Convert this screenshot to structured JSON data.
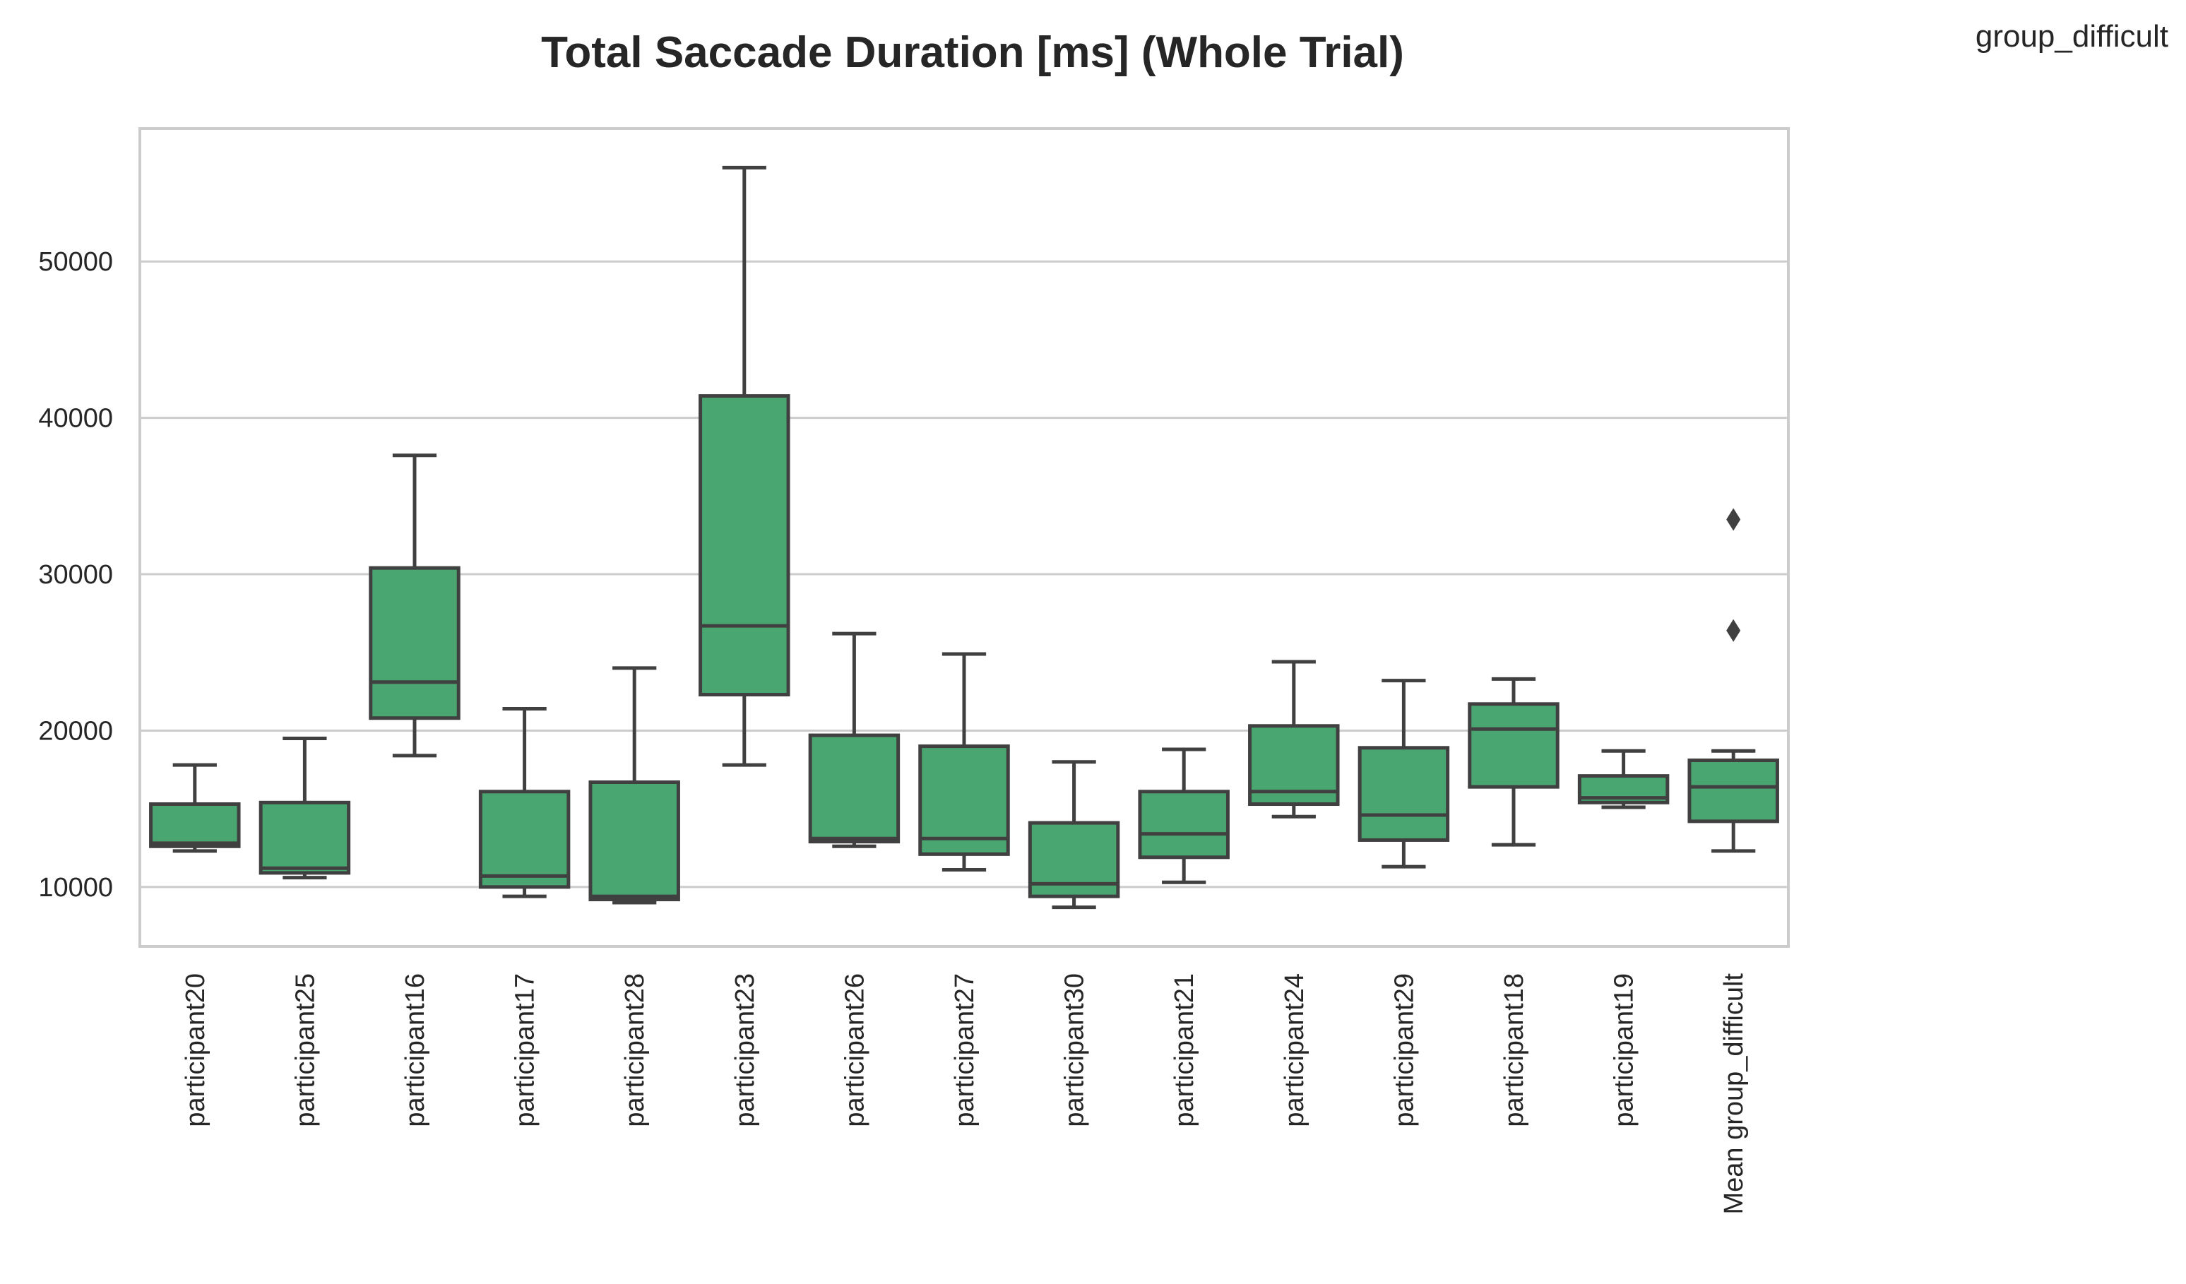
{
  "chart_data": {
    "type": "box",
    "title": "Total Saccade Duration [ms] (Whole Trial)",
    "corner_label": "group_difficult",
    "xlabel": "",
    "ylabel": "",
    "ylim": [
      6200,
      58500
    ],
    "yticks": [
      10000,
      20000,
      30000,
      40000,
      50000
    ],
    "grid": "horizontal",
    "box_color": "#4aa671",
    "line_color": "#404040",
    "categories": [
      "participant20",
      "participant25",
      "participant16",
      "participant17",
      "participant28",
      "participant23",
      "participant26",
      "participant27",
      "participant30",
      "participant21",
      "participant24",
      "participant29",
      "participant18",
      "participant19",
      "Mean group_difficult"
    ],
    "boxes": [
      {
        "whislo": 12300,
        "q1": 12600,
        "med": 12800,
        "q3": 15300,
        "whishi": 17800,
        "fliers": []
      },
      {
        "whislo": 10600,
        "q1": 10900,
        "med": 11200,
        "q3": 15400,
        "whishi": 19500,
        "fliers": []
      },
      {
        "whislo": 18400,
        "q1": 20800,
        "med": 23100,
        "q3": 30400,
        "whishi": 37600,
        "fliers": []
      },
      {
        "whislo": 9400,
        "q1": 10000,
        "med": 10700,
        "q3": 16100,
        "whishi": 21400,
        "fliers": []
      },
      {
        "whislo": 9000,
        "q1": 9200,
        "med": 9400,
        "q3": 16700,
        "whishi": 24000,
        "fliers": []
      },
      {
        "whislo": 17800,
        "q1": 22300,
        "med": 26700,
        "q3": 41400,
        "whishi": 56000,
        "fliers": []
      },
      {
        "whislo": 12600,
        "q1": 12900,
        "med": 13100,
        "q3": 19700,
        "whishi": 26200,
        "fliers": []
      },
      {
        "whislo": 11100,
        "q1": 12100,
        "med": 13100,
        "q3": 19000,
        "whishi": 24900,
        "fliers": []
      },
      {
        "whislo": 8700,
        "q1": 9400,
        "med": 10200,
        "q3": 14100,
        "whishi": 18000,
        "fliers": []
      },
      {
        "whislo": 10300,
        "q1": 11900,
        "med": 13400,
        "q3": 16100,
        "whishi": 18800,
        "fliers": []
      },
      {
        "whislo": 14500,
        "q1": 15300,
        "med": 16100,
        "q3": 20300,
        "whishi": 24400,
        "fliers": []
      },
      {
        "whislo": 11300,
        "q1": 13000,
        "med": 14600,
        "q3": 18900,
        "whishi": 23200,
        "fliers": []
      },
      {
        "whislo": 12700,
        "q1": 16400,
        "med": 20100,
        "q3": 21700,
        "whishi": 23300,
        "fliers": []
      },
      {
        "whislo": 15100,
        "q1": 15400,
        "med": 15700,
        "q3": 17100,
        "whishi": 18700,
        "fliers": []
      },
      {
        "whislo": 12300,
        "q1": 14200,
        "med": 16400,
        "q3": 18100,
        "whishi": 18700,
        "fliers": [
          26400,
          33500
        ]
      }
    ]
  }
}
